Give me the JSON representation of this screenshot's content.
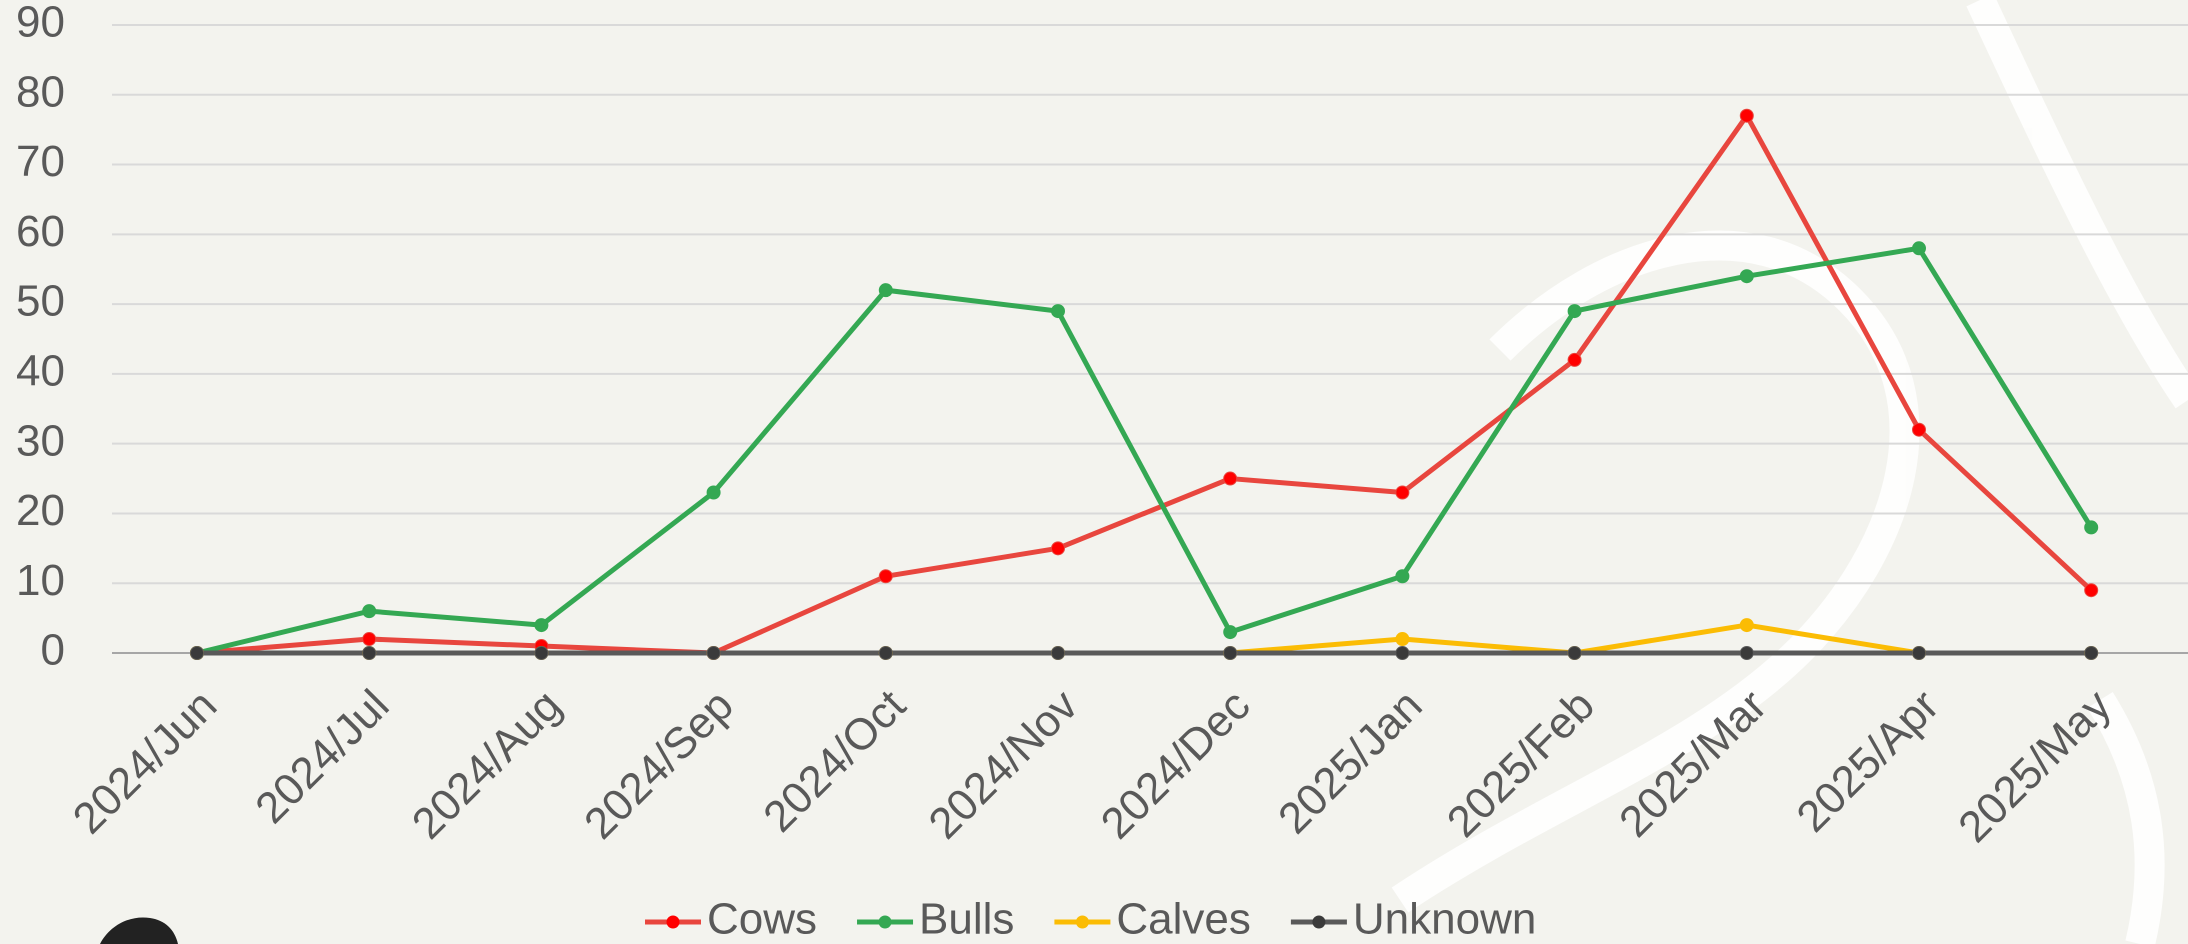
{
  "chart_data": {
    "type": "line",
    "categories": [
      "2024/Jun",
      "2024/Jul",
      "2024/Aug",
      "2024/Sep",
      "2024/Oct",
      "2024/Nov",
      "2024/Dec",
      "2025/Jan",
      "2025/Feb",
      "2025/Mar",
      "2025/Apr",
      "2025/May"
    ],
    "series": [
      {
        "name": "Cows",
        "color": "#e8463e",
        "marker_color": "#ff0000",
        "values": [
          0,
          2,
          1,
          0,
          11,
          15,
          25,
          23,
          42,
          77,
          32,
          9
        ]
      },
      {
        "name": "Bulls",
        "color": "#34a853",
        "marker_color": "#34a853",
        "values": [
          0,
          6,
          4,
          23,
          52,
          49,
          3,
          11,
          49,
          54,
          58,
          18
        ]
      },
      {
        "name": "Calves",
        "color": "#fbbc04",
        "marker_color": "#fbbc04",
        "values": [
          0,
          0,
          0,
          0,
          0,
          0,
          0,
          2,
          0,
          4,
          0,
          0
        ]
      },
      {
        "name": "Unknown",
        "color": "#595959",
        "marker_color": "#3a3a3a",
        "values": [
          0,
          0,
          0,
          0,
          0,
          0,
          0,
          0,
          0,
          0,
          0,
          0
        ]
      }
    ],
    "ylim": [
      0,
      90
    ],
    "yticks": [
      0,
      10,
      20,
      30,
      40,
      50,
      60,
      70,
      80,
      90
    ],
    "grid": true,
    "legend": "bottom"
  }
}
